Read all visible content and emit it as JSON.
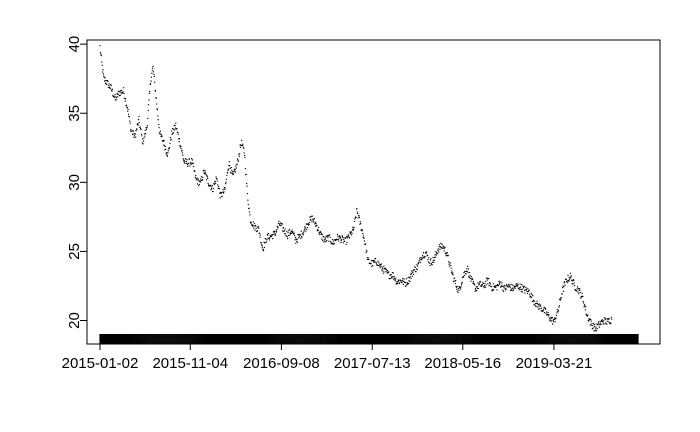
{
  "chart_data": {
    "type": "scatter",
    "title": "",
    "xlabel": "",
    "ylabel": "",
    "xlim": [
      "2015-01-02",
      "2019-12-31"
    ],
    "ylim": [
      18.3,
      40.3
    ],
    "x_tick_labels": [
      "2015-01-02",
      "2015-11-04",
      "2016-09-08",
      "2017-07-13",
      "2018-05-16",
      "2019-03-21"
    ],
    "y_tick_labels": [
      "20",
      "25",
      "30",
      "35",
      "40"
    ],
    "grid": false,
    "legend": "none",
    "series": [
      {
        "points": [
          [
            "2015-01-02",
            39.8
          ],
          [
            "2015-01-08",
            38.6
          ],
          [
            "2015-01-15",
            37.5
          ],
          [
            "2015-01-26",
            37.2
          ],
          [
            "2015-02-09",
            36.8
          ],
          [
            "2015-02-23",
            36.0
          ],
          [
            "2015-03-09",
            36.5
          ],
          [
            "2015-03-23",
            36.6
          ],
          [
            "2015-04-06",
            35.3
          ],
          [
            "2015-04-17",
            33.8
          ],
          [
            "2015-04-30",
            33.3
          ],
          [
            "2015-05-14",
            34.5
          ],
          [
            "2015-05-27",
            32.9
          ],
          [
            "2015-06-10",
            34.0
          ],
          [
            "2015-06-24",
            37.6
          ],
          [
            "2015-07-01",
            38.3
          ],
          [
            "2015-07-13",
            35.7
          ],
          [
            "2015-07-24",
            33.5
          ],
          [
            "2015-08-06",
            32.9
          ],
          [
            "2015-08-20",
            32.0
          ],
          [
            "2015-09-02",
            33.5
          ],
          [
            "2015-09-16",
            34.1
          ],
          [
            "2015-09-30",
            32.9
          ],
          [
            "2015-10-14",
            31.5
          ],
          [
            "2015-10-27",
            31.4
          ],
          [
            "2015-11-10",
            31.5
          ],
          [
            "2015-11-24",
            30.2
          ],
          [
            "2015-12-08",
            29.9
          ],
          [
            "2015-12-21",
            30.8
          ],
          [
            "2016-01-05",
            30.0
          ],
          [
            "2016-01-19",
            29.5
          ],
          [
            "2016-02-01",
            30.3
          ],
          [
            "2016-02-15",
            29.0
          ],
          [
            "2016-02-29",
            29.4
          ],
          [
            "2016-03-14",
            31.4
          ],
          [
            "2016-03-28",
            30.4
          ],
          [
            "2016-04-11",
            31.3
          ],
          [
            "2016-04-25",
            32.9
          ],
          [
            "2016-05-06",
            32.1
          ],
          [
            "2016-05-16",
            29.1
          ],
          [
            "2016-05-26",
            27.3
          ],
          [
            "2016-06-09",
            26.8
          ],
          [
            "2016-06-23",
            26.6
          ],
          [
            "2016-07-07",
            25.2
          ],
          [
            "2016-07-21",
            26.0
          ],
          [
            "2016-08-04",
            26.1
          ],
          [
            "2016-08-18",
            26.3
          ],
          [
            "2016-09-01",
            27.0
          ],
          [
            "2016-09-15",
            26.6
          ],
          [
            "2016-09-29",
            26.2
          ],
          [
            "2016-10-13",
            26.5
          ],
          [
            "2016-10-27",
            25.8
          ],
          [
            "2016-11-10",
            26.1
          ],
          [
            "2016-11-24",
            26.5
          ],
          [
            "2016-12-08",
            27.1
          ],
          [
            "2016-12-22",
            27.4
          ],
          [
            "2017-01-05",
            26.9
          ],
          [
            "2017-01-19",
            26.2
          ],
          [
            "2017-02-02",
            25.8
          ],
          [
            "2017-02-16",
            26.0
          ],
          [
            "2017-03-02",
            25.6
          ],
          [
            "2017-03-16",
            26.0
          ],
          [
            "2017-03-30",
            25.9
          ],
          [
            "2017-04-13",
            25.7
          ],
          [
            "2017-04-27",
            26.1
          ],
          [
            "2017-05-11",
            26.6
          ],
          [
            "2017-05-22",
            28.0
          ],
          [
            "2017-06-01",
            27.1
          ],
          [
            "2017-06-15",
            26.0
          ],
          [
            "2017-06-29",
            24.3
          ],
          [
            "2017-07-13",
            24.1
          ],
          [
            "2017-07-27",
            24.3
          ],
          [
            "2017-08-10",
            23.9
          ],
          [
            "2017-08-24",
            23.6
          ],
          [
            "2017-09-07",
            23.3
          ],
          [
            "2017-09-21",
            23.3
          ],
          [
            "2017-10-05",
            22.8
          ],
          [
            "2017-10-19",
            22.9
          ],
          [
            "2017-11-02",
            22.7
          ],
          [
            "2017-11-16",
            23.0
          ],
          [
            "2017-11-30",
            23.6
          ],
          [
            "2017-12-14",
            23.9
          ],
          [
            "2017-12-28",
            24.7
          ],
          [
            "2018-01-11",
            24.9
          ],
          [
            "2018-01-25",
            24.2
          ],
          [
            "2018-02-08",
            24.4
          ],
          [
            "2018-02-22",
            25.2
          ],
          [
            "2018-03-08",
            25.4
          ],
          [
            "2018-03-22",
            24.9
          ],
          [
            "2018-04-05",
            23.8
          ],
          [
            "2018-04-19",
            22.8
          ],
          [
            "2018-05-03",
            22.1
          ],
          [
            "2018-05-17",
            23.2
          ],
          [
            "2018-05-31",
            23.8
          ],
          [
            "2018-06-14",
            22.9
          ],
          [
            "2018-06-28",
            22.3
          ],
          [
            "2018-07-12",
            22.6
          ],
          [
            "2018-07-26",
            22.5
          ],
          [
            "2018-08-09",
            22.9
          ],
          [
            "2018-08-23",
            22.4
          ],
          [
            "2018-09-06",
            22.4
          ],
          [
            "2018-09-20",
            22.7
          ],
          [
            "2018-10-04",
            22.3
          ],
          [
            "2018-10-18",
            22.5
          ],
          [
            "2018-11-01",
            22.3
          ],
          [
            "2018-11-15",
            22.5
          ],
          [
            "2018-11-29",
            22.4
          ],
          [
            "2018-12-13",
            22.2
          ],
          [
            "2018-12-27",
            22.1
          ],
          [
            "2019-01-10",
            21.5
          ],
          [
            "2019-01-24",
            21.1
          ],
          [
            "2019-02-07",
            20.9
          ],
          [
            "2019-02-21",
            20.6
          ],
          [
            "2019-03-07",
            20.2
          ],
          [
            "2019-03-21",
            19.9
          ],
          [
            "2019-04-04",
            20.7
          ],
          [
            "2019-04-18",
            22.1
          ],
          [
            "2019-05-02",
            22.9
          ],
          [
            "2019-05-16",
            23.2
          ],
          [
            "2019-05-30",
            22.5
          ],
          [
            "2019-06-13",
            22.2
          ],
          [
            "2019-06-27",
            21.6
          ],
          [
            "2019-07-11",
            20.4
          ],
          [
            "2019-07-25",
            19.8
          ],
          [
            "2019-08-08",
            19.4
          ],
          [
            "2019-08-22",
            19.7
          ],
          [
            "2019-09-05",
            20.0
          ],
          [
            "2019-09-19",
            19.9
          ],
          [
            "2019-10-03",
            20.1
          ]
        ]
      }
    ]
  }
}
